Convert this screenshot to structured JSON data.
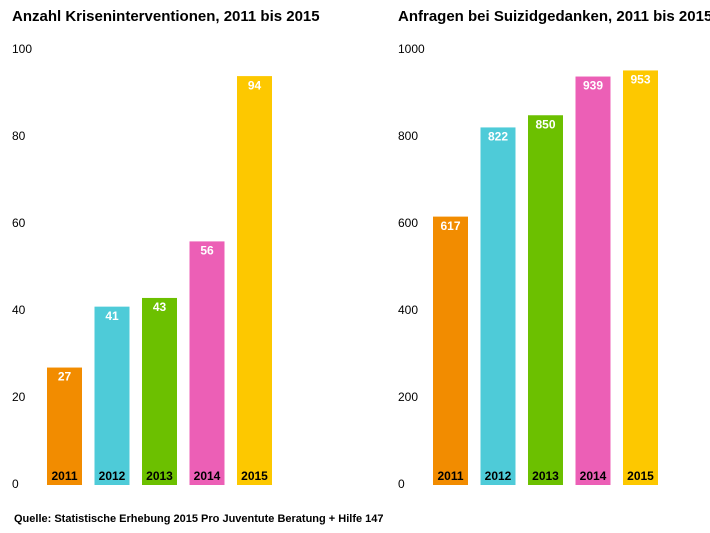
{
  "chart_data": [
    {
      "type": "bar",
      "title": "Anzahl Kriseninterventionen, 2011 bis 2015",
      "categories": [
        "2011",
        "2012",
        "2013",
        "2014",
        "2015"
      ],
      "values": [
        27,
        41,
        43,
        56,
        94
      ],
      "colors": [
        "#f28c00",
        "#4ecbd8",
        "#6cc000",
        "#ec5fb6",
        "#fdc800"
      ],
      "ylim": [
        0,
        100
      ],
      "yticks": [
        0,
        20,
        40,
        60,
        80,
        100
      ]
    },
    {
      "type": "bar",
      "title": "Anfragen bei Suizidgedanken, 2011 bis 2015",
      "categories": [
        "2011",
        "2012",
        "2013",
        "2014",
        "2015"
      ],
      "values": [
        617,
        822,
        850,
        939,
        953
      ],
      "colors": [
        "#f28c00",
        "#4ecbd8",
        "#6cc000",
        "#ec5fb6",
        "#fdc800"
      ],
      "ylim": [
        0,
        1000
      ],
      "yticks": [
        0,
        200,
        400,
        600,
        800,
        1000
      ]
    }
  ],
  "source": "Quelle: Statistische Erhebung 2015 Pro Juventute Beratung + Hilfe 147"
}
